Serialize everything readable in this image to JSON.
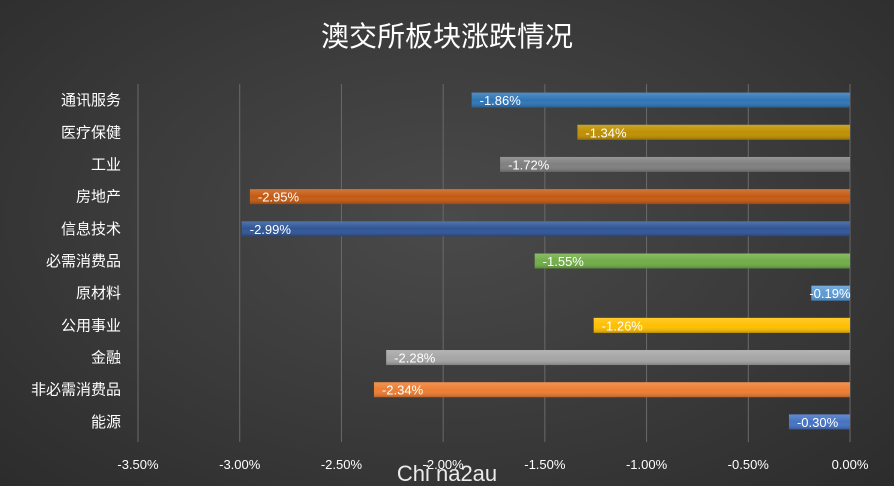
{
  "chart_data": {
    "type": "bar",
    "orientation": "horizontal",
    "title": "澳交所板块涨跌情况",
    "categories": [
      "通讯服务",
      "医疗保健",
      "工业",
      "房地产",
      "信息技术",
      "必需消费品",
      "原材料",
      "公用事业",
      "金融",
      "非必需消费品",
      "能源"
    ],
    "values": [
      -1.86,
      -1.34,
      -1.72,
      -2.95,
      -2.99,
      -1.55,
      -0.19,
      -1.26,
      -2.28,
      -2.34,
      -0.3
    ],
    "data_labels": [
      "-1.86%",
      "-1.34%",
      "-1.72%",
      "-2.95%",
      "-2.99%",
      "-1.55%",
      "-0.19%",
      "-1.26%",
      "-2.28%",
      "-2.34%",
      "-0.30%"
    ],
    "colors": [
      "#2e75b6",
      "#bf9000",
      "#7f7f7f",
      "#c55a11",
      "#2f5597",
      "#70ad47",
      "#5b9bd5",
      "#ffc000",
      "#a5a5a5",
      "#ed7d31",
      "#4472c4"
    ],
    "xlim": [
      -3.5,
      0
    ],
    "x_ticks": [
      -3.5,
      -3.0,
      -2.5,
      -2.0,
      -1.5,
      -1.0,
      -0.5,
      0.0
    ],
    "x_tick_labels": [
      "-3.50%",
      "-3.00%",
      "-2.50%",
      "-2.00%",
      "-1.50%",
      "-1.00%",
      "-0.50%",
      "0.00%"
    ],
    "xlabel": "",
    "ylabel": "",
    "grid": true,
    "legend": "none"
  },
  "watermark": "Chi na2au"
}
